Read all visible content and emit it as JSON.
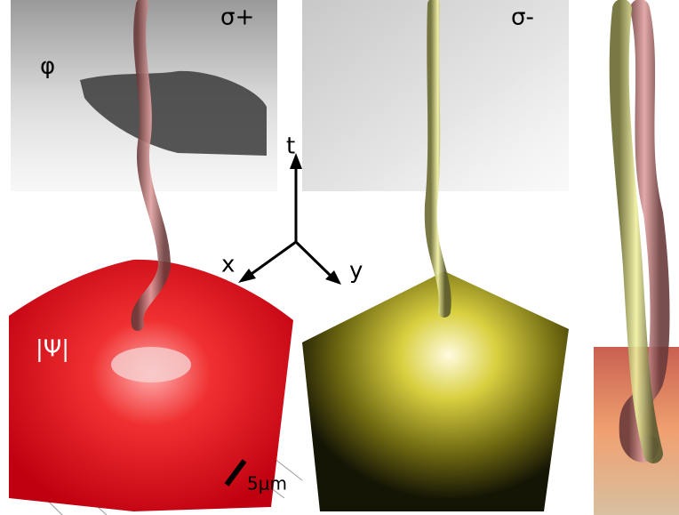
{
  "panels": [
    {
      "label": "σ+",
      "phase_label": "φ",
      "amplitude_label": "|Ψ|"
    },
    {
      "label": "σ-"
    }
  ],
  "axes": {
    "t": "t",
    "x": "x",
    "y": "y"
  },
  "scale_bar": "5μm"
}
